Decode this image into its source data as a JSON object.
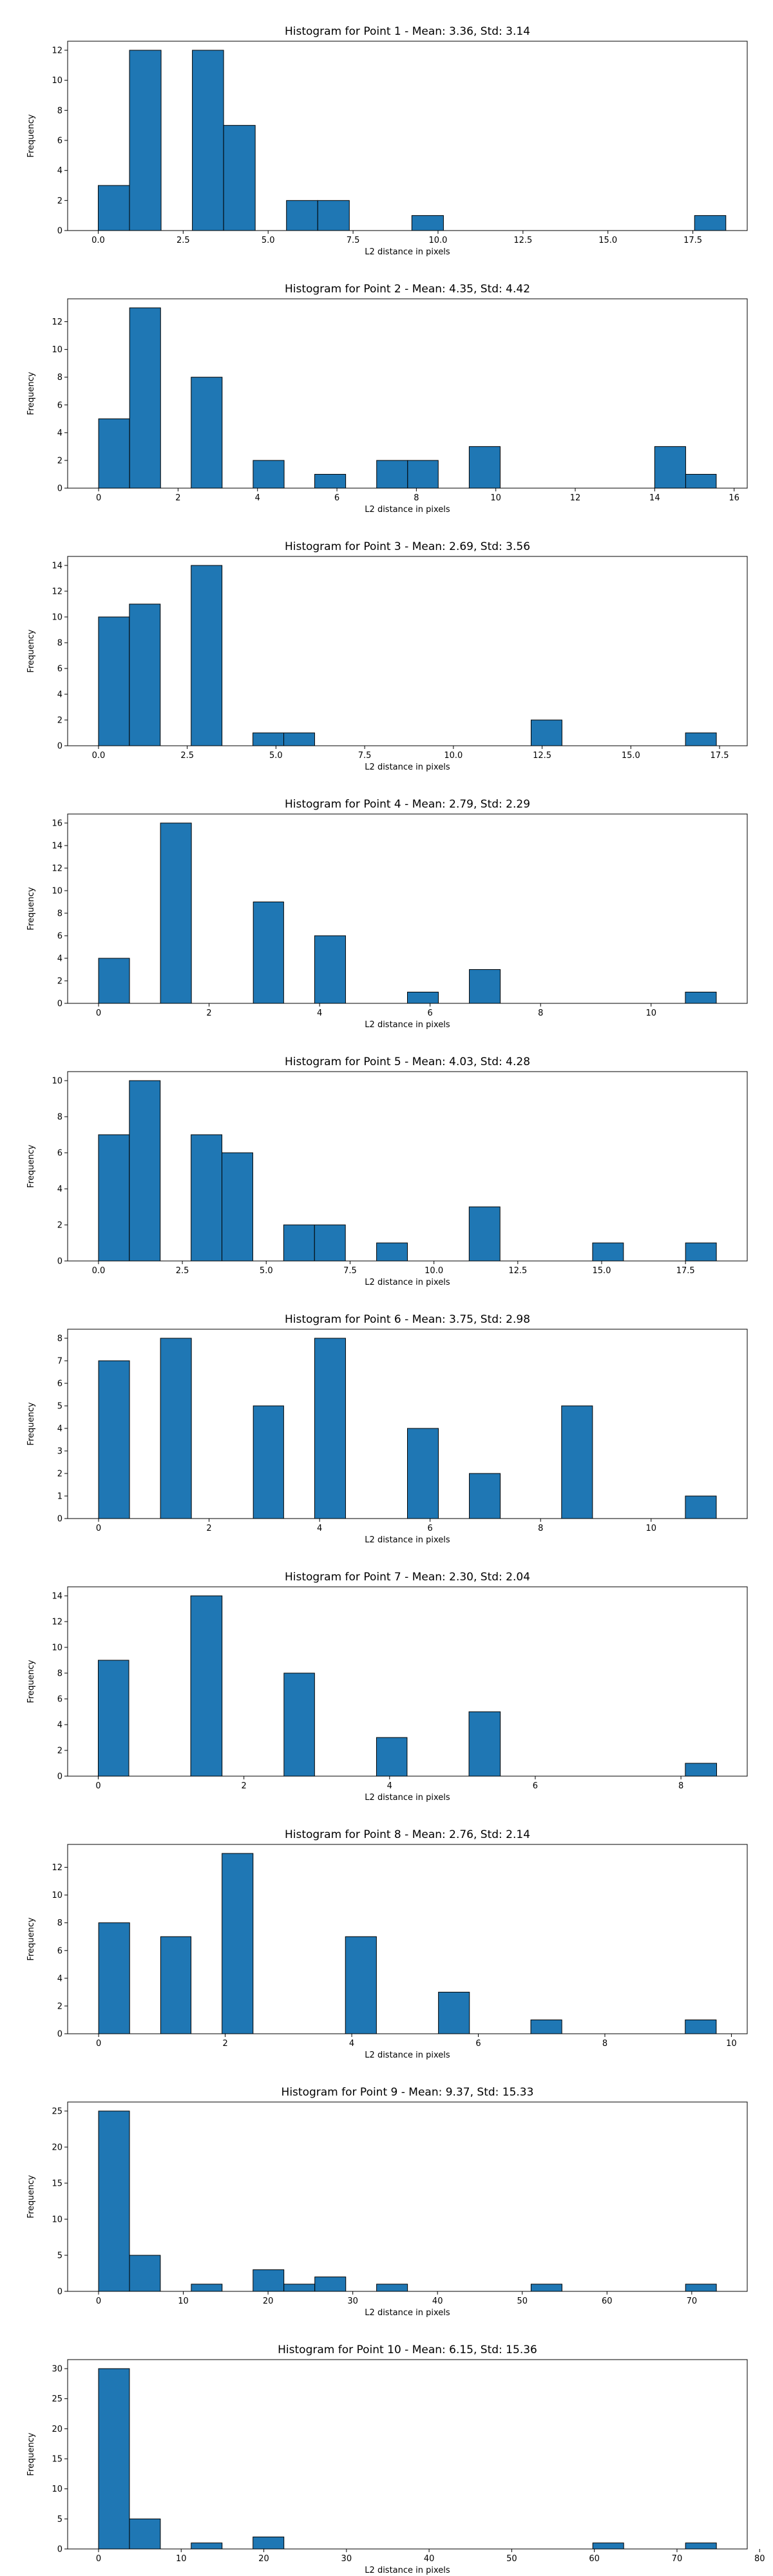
{
  "chart_data": [
    {
      "type": "bar",
      "title": "Histogram for Point 1 - Mean: 3.36, Std: 3.14",
      "xlabel": "L2 distance in pixels",
      "ylabel": "Frequency",
      "xlim": [
        -0.9,
        19.1
      ],
      "ylim": [
        0,
        12.6
      ],
      "xticks": [
        0.0,
        2.5,
        5.0,
        7.5,
        10.0,
        12.5,
        15.0,
        17.5
      ],
      "xtick_labels": [
        "0.0",
        "2.5",
        "5.0",
        "7.5",
        "10.0",
        "12.5",
        "15.0",
        "17.5"
      ],
      "yticks": [
        0,
        2,
        4,
        6,
        8,
        10,
        12
      ],
      "bars": [
        {
          "x0": 0.0,
          "x1": 0.92,
          "value": 3
        },
        {
          "x0": 0.92,
          "x1": 1.85,
          "value": 12
        },
        {
          "x0": 2.77,
          "x1": 3.69,
          "value": 12
        },
        {
          "x0": 3.69,
          "x1": 4.62,
          "value": 7
        },
        {
          "x0": 5.54,
          "x1": 6.46,
          "value": 2
        },
        {
          "x0": 6.46,
          "x1": 7.39,
          "value": 2
        },
        {
          "x0": 9.23,
          "x1": 10.16,
          "value": 1
        },
        {
          "x0": 17.55,
          "x1": 18.47,
          "value": 1
        }
      ]
    },
    {
      "type": "bar",
      "title": "Histogram for Point 2 - Mean: 4.35, Std: 4.42",
      "xlabel": "L2 distance in pixels",
      "ylabel": "Frequency",
      "xlim": [
        -0.78,
        16.33
      ],
      "ylim": [
        0,
        13.65
      ],
      "xticks": [
        0,
        2,
        4,
        6,
        8,
        10,
        12,
        14,
        16
      ],
      "xtick_labels": [
        "0",
        "2",
        "4",
        "6",
        "8",
        "10",
        "12",
        "14",
        "16"
      ],
      "yticks": [
        0,
        2,
        4,
        6,
        8,
        10,
        12
      ],
      "bars": [
        {
          "x0": 0.0,
          "x1": 0.78,
          "value": 5
        },
        {
          "x0": 0.78,
          "x1": 1.56,
          "value": 13
        },
        {
          "x0": 2.33,
          "x1": 3.11,
          "value": 8
        },
        {
          "x0": 3.89,
          "x1": 4.67,
          "value": 2
        },
        {
          "x0": 5.44,
          "x1": 6.22,
          "value": 1
        },
        {
          "x0": 7.0,
          "x1": 7.78,
          "value": 2
        },
        {
          "x0": 7.78,
          "x1": 8.55,
          "value": 2
        },
        {
          "x0": 9.33,
          "x1": 10.11,
          "value": 3
        },
        {
          "x0": 14.0,
          "x1": 14.78,
          "value": 3
        },
        {
          "x0": 14.78,
          "x1": 15.55,
          "value": 1
        }
      ]
    },
    {
      "type": "bar",
      "title": "Histogram for Point 3 - Mean: 2.69, Std: 3.56",
      "xlabel": "L2 distance in pixels",
      "ylabel": "Frequency",
      "xlim": [
        -0.87,
        18.28
      ],
      "ylim": [
        0,
        14.7
      ],
      "xticks": [
        0.0,
        2.5,
        5.0,
        7.5,
        10.0,
        12.5,
        15.0,
        17.5
      ],
      "xtick_labels": [
        "0.0",
        "2.5",
        "5.0",
        "7.5",
        "10.0",
        "12.5",
        "15.0",
        "17.5"
      ],
      "yticks": [
        0,
        2,
        4,
        6,
        8,
        10,
        12,
        14
      ],
      "bars": [
        {
          "x0": 0.0,
          "x1": 0.87,
          "value": 10
        },
        {
          "x0": 0.87,
          "x1": 1.74,
          "value": 11
        },
        {
          "x0": 2.61,
          "x1": 3.48,
          "value": 14
        },
        {
          "x0": 4.35,
          "x1": 5.22,
          "value": 1
        },
        {
          "x0": 5.22,
          "x1": 6.09,
          "value": 1
        },
        {
          "x0": 12.19,
          "x1": 13.06,
          "value": 2
        },
        {
          "x0": 16.54,
          "x1": 17.41,
          "value": 1
        }
      ]
    },
    {
      "type": "bar",
      "title": "Histogram for Point 4 - Mean: 2.79, Std: 2.29",
      "xlabel": "L2 distance in pixels",
      "ylabel": "Frequency",
      "xlim": [
        -0.56,
        11.74
      ],
      "ylim": [
        0,
        16.8
      ],
      "xticks": [
        0,
        2,
        4,
        6,
        8,
        10
      ],
      "xtick_labels": [
        "0",
        "2",
        "4",
        "6",
        "8",
        "10"
      ],
      "yticks": [
        0,
        2,
        4,
        6,
        8,
        10,
        12,
        14,
        16
      ],
      "bars": [
        {
          "x0": 0.0,
          "x1": 0.56,
          "value": 4
        },
        {
          "x0": 1.12,
          "x1": 1.68,
          "value": 16
        },
        {
          "x0": 2.8,
          "x1": 3.35,
          "value": 9
        },
        {
          "x0": 3.91,
          "x1": 4.47,
          "value": 6
        },
        {
          "x0": 5.59,
          "x1": 6.15,
          "value": 1
        },
        {
          "x0": 6.71,
          "x1": 7.27,
          "value": 3
        },
        {
          "x0": 10.62,
          "x1": 11.18,
          "value": 1
        }
      ]
    },
    {
      "type": "bar",
      "title": "Histogram for Point 5 - Mean: 4.03, Std: 4.28",
      "xlabel": "L2 distance in pixels",
      "ylabel": "Frequency",
      "xlim": [
        -0.92,
        19.34
      ],
      "ylim": [
        0,
        10.5
      ],
      "xticks": [
        0.0,
        2.5,
        5.0,
        7.5,
        10.0,
        12.5,
        15.0,
        17.5
      ],
      "xtick_labels": [
        "0.0",
        "2.5",
        "5.0",
        "7.5",
        "10.0",
        "12.5",
        "15.0",
        "17.5"
      ],
      "yticks": [
        0,
        2,
        4,
        6,
        8,
        10
      ],
      "bars": [
        {
          "x0": 0.0,
          "x1": 0.92,
          "value": 7
        },
        {
          "x0": 0.92,
          "x1": 1.84,
          "value": 10
        },
        {
          "x0": 2.76,
          "x1": 3.68,
          "value": 7
        },
        {
          "x0": 3.68,
          "x1": 4.6,
          "value": 6
        },
        {
          "x0": 5.52,
          "x1": 6.44,
          "value": 2
        },
        {
          "x0": 6.44,
          "x1": 7.36,
          "value": 2
        },
        {
          "x0": 8.29,
          "x1": 9.21,
          "value": 1
        },
        {
          "x0": 11.05,
          "x1": 11.97,
          "value": 3
        },
        {
          "x0": 14.73,
          "x1": 15.65,
          "value": 1
        },
        {
          "x0": 17.5,
          "x1": 18.42,
          "value": 1
        }
      ]
    },
    {
      "type": "bar",
      "title": "Histogram for Point 6 - Mean: 3.75, Std: 2.98",
      "xlabel": "L2 distance in pixels",
      "ylabel": "Frequency",
      "xlim": [
        -0.56,
        11.74
      ],
      "ylim": [
        0,
        8.4
      ],
      "xticks": [
        0,
        2,
        4,
        6,
        8,
        10
      ],
      "xtick_labels": [
        "0",
        "2",
        "4",
        "6",
        "8",
        "10"
      ],
      "yticks": [
        0,
        1,
        2,
        3,
        4,
        5,
        6,
        7,
        8
      ],
      "bars": [
        {
          "x0": 0.0,
          "x1": 0.56,
          "value": 7
        },
        {
          "x0": 1.12,
          "x1": 1.68,
          "value": 8
        },
        {
          "x0": 2.8,
          "x1": 3.35,
          "value": 5
        },
        {
          "x0": 3.91,
          "x1": 4.47,
          "value": 8
        },
        {
          "x0": 5.59,
          "x1": 6.15,
          "value": 4
        },
        {
          "x0": 6.71,
          "x1": 7.27,
          "value": 2
        },
        {
          "x0": 8.38,
          "x1": 8.94,
          "value": 5
        },
        {
          "x0": 10.62,
          "x1": 11.18,
          "value": 1
        }
      ]
    },
    {
      "type": "bar",
      "title": "Histogram for Point 7 - Mean: 2.30, Std: 2.04",
      "xlabel": "L2 distance in pixels",
      "ylabel": "Frequency",
      "xlim": [
        -0.42,
        8.91
      ],
      "ylim": [
        0,
        14.7
      ],
      "xticks": [
        0,
        2,
        4,
        6,
        8
      ],
      "xtick_labels": [
        "0",
        "2",
        "4",
        "6",
        "8"
      ],
      "yticks": [
        0,
        2,
        4,
        6,
        8,
        10,
        12,
        14
      ],
      "bars": [
        {
          "x0": 0.0,
          "x1": 0.42,
          "value": 9
        },
        {
          "x0": 1.27,
          "x1": 1.7,
          "value": 14
        },
        {
          "x0": 2.55,
          "x1": 2.97,
          "value": 8
        },
        {
          "x0": 3.82,
          "x1": 4.24,
          "value": 3
        },
        {
          "x0": 5.09,
          "x1": 5.52,
          "value": 5
        },
        {
          "x0": 8.06,
          "x1": 8.49,
          "value": 1
        }
      ]
    },
    {
      "type": "bar",
      "title": "Histogram for Point 8 - Mean: 2.76, Std: 2.14",
      "xlabel": "L2 distance in pixels",
      "ylabel": "Frequency",
      "xlim": [
        -0.49,
        10.25
      ],
      "ylim": [
        0,
        13.65
      ],
      "xticks": [
        0,
        2,
        4,
        6,
        8,
        10
      ],
      "xtick_labels": [
        "0",
        "2",
        "4",
        "6",
        "8",
        "10"
      ],
      "yticks": [
        0,
        2,
        4,
        6,
        8,
        10,
        12
      ],
      "bars": [
        {
          "x0": 0.0,
          "x1": 0.49,
          "value": 8
        },
        {
          "x0": 0.98,
          "x1": 1.46,
          "value": 7
        },
        {
          "x0": 1.95,
          "x1": 2.44,
          "value": 13
        },
        {
          "x0": 3.9,
          "x1": 4.39,
          "value": 7
        },
        {
          "x0": 5.37,
          "x1": 5.86,
          "value": 3
        },
        {
          "x0": 6.83,
          "x1": 7.32,
          "value": 1
        },
        {
          "x0": 9.27,
          "x1": 9.76,
          "value": 1
        }
      ]
    },
    {
      "type": "bar",
      "title": "Histogram for Point 9 - Mean: 9.37, Std: 15.33",
      "xlabel": "L2 distance in pixels",
      "ylabel": "Frequency",
      "xlim": [
        -3.65,
        76.55
      ],
      "ylim": [
        0,
        26.25
      ],
      "xticks": [
        0,
        10,
        20,
        30,
        40,
        50,
        60,
        70
      ],
      "xtick_labels": [
        "0",
        "10",
        "20",
        "30",
        "40",
        "50",
        "60",
        "70"
      ],
      "yticks": [
        0,
        5,
        10,
        15,
        20,
        25
      ],
      "bars": [
        {
          "x0": 0.0,
          "x1": 3.65,
          "value": 25
        },
        {
          "x0": 3.65,
          "x1": 7.29,
          "value": 5
        },
        {
          "x0": 10.94,
          "x1": 14.58,
          "value": 1
        },
        {
          "x0": 18.23,
          "x1": 21.87,
          "value": 3
        },
        {
          "x0": 21.87,
          "x1": 25.52,
          "value": 1
        },
        {
          "x0": 25.52,
          "x1": 29.17,
          "value": 2
        },
        {
          "x0": 32.81,
          "x1": 36.46,
          "value": 1
        },
        {
          "x0": 51.04,
          "x1": 54.69,
          "value": 1
        },
        {
          "x0": 69.27,
          "x1": 72.91,
          "value": 1
        }
      ]
    },
    {
      "type": "bar",
      "title": "Histogram for Point 10 - Mean: 6.15, Std: 15.36",
      "xlabel": "L2 distance in pixels",
      "ylabel": "Frequency",
      "xlim": [
        -3.74,
        78.5
      ],
      "ylim": [
        0,
        31.5
      ],
      "xticks": [
        0,
        10,
        20,
        30,
        40,
        50,
        60,
        70,
        80
      ],
      "xtick_labels": [
        "0",
        "10",
        "20",
        "30",
        "40",
        "50",
        "60",
        "70",
        "80"
      ],
      "yticks": [
        0,
        5,
        10,
        15,
        20,
        25,
        30
      ],
      "bars": [
        {
          "x0": 0.0,
          "x1": 3.74,
          "value": 30
        },
        {
          "x0": 3.74,
          "x1": 7.48,
          "value": 5
        },
        {
          "x0": 11.21,
          "x1": 14.95,
          "value": 1
        },
        {
          "x0": 18.69,
          "x1": 22.43,
          "value": 2
        },
        {
          "x0": 59.81,
          "x1": 63.55,
          "value": 1
        },
        {
          "x0": 71.03,
          "x1": 74.77,
          "value": 1
        }
      ]
    }
  ]
}
